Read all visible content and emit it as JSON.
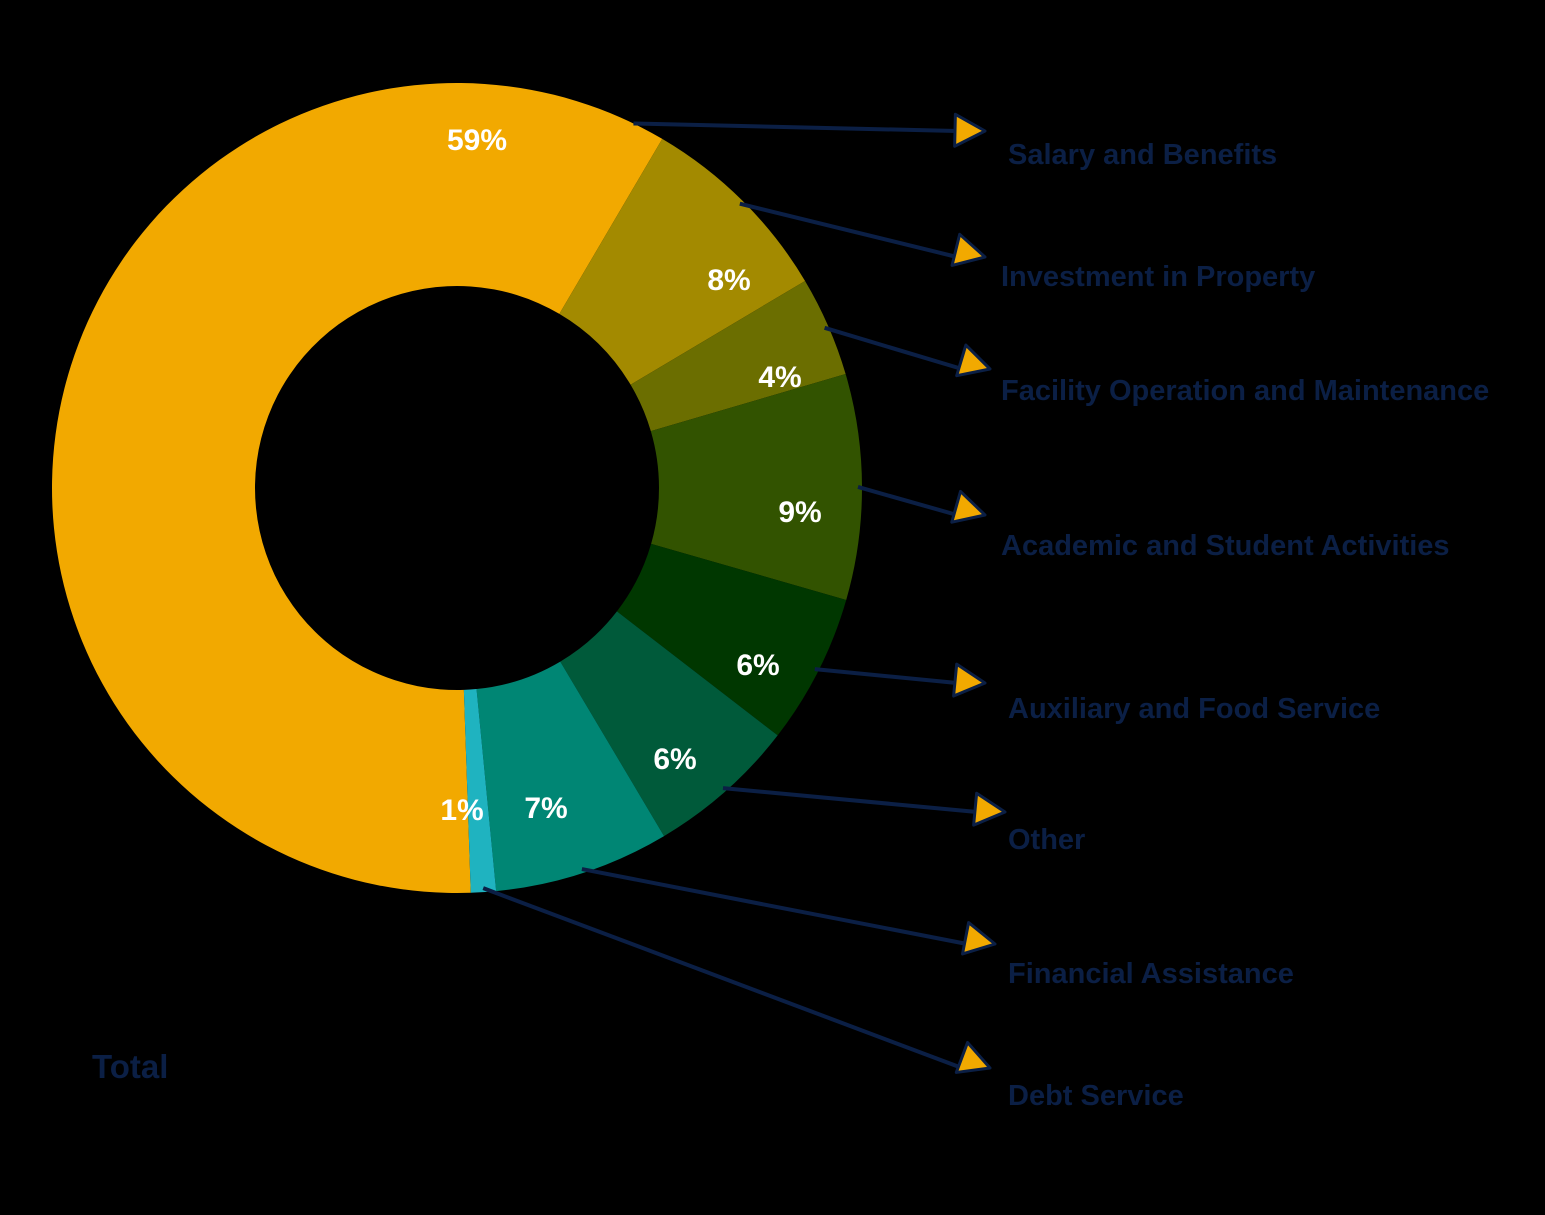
{
  "chart_data": {
    "type": "pie",
    "variant": "donut",
    "title": "Total",
    "unit": "%",
    "slices": [
      {
        "label": "Salary and Benefits",
        "value": 59,
        "display": "59%",
        "color": "#F2A900"
      },
      {
        "label": "Investment in Property",
        "value": 8,
        "display": "8%",
        "color": "#A38A00"
      },
      {
        "label": "Facility Operation and Maintenance",
        "value": 4,
        "display": "4%",
        "color": "#6B6E00"
      },
      {
        "label": "Academic and Student Activities",
        "value": 9,
        "display": "9%",
        "color": "#325300"
      },
      {
        "label": "Auxiliary and Food Service",
        "value": 6,
        "display": "6%",
        "color": "#003700"
      },
      {
        "label": "Other",
        "value": 6,
        "display": "6%",
        "color": "#005A3A"
      },
      {
        "label": "Financial Assistance",
        "value": 7,
        "display": "7%",
        "color": "#008674"
      },
      {
        "label": "Debt Service",
        "value": 1,
        "display": "1%",
        "color": "#1FB3C0"
      }
    ]
  },
  "colors": {
    "background": "#000000",
    "label_text": "#0B1F45",
    "leader_line": "#0B1F45",
    "arrow_fill": "#F2A900"
  }
}
